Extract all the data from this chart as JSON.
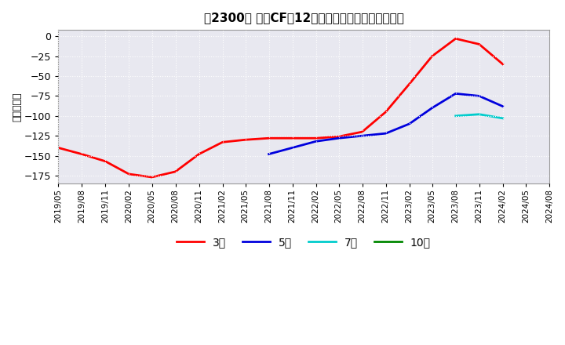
{
  "title": "【2300】 投資CFの12か月移動合計の平均値の推移",
  "ylabel": "（百万円）",
  "bg_color": "#ffffff",
  "plot_bg_color": "#e8e8f0",
  "grid_color": "#ffffff",
  "yticks": [
    0,
    -25,
    -50,
    -75,
    -100,
    -125,
    -150,
    -175
  ],
  "ylim": [
    -185,
    8
  ],
  "series": {
    "3年": {
      "color": "#ff0000",
      "data": [
        [
          "2019-05",
          -140
        ],
        [
          "2019-08",
          -148
        ],
        [
          "2019-11",
          -157
        ],
        [
          "2020-02",
          -173
        ],
        [
          "2020-05",
          -177
        ],
        [
          "2020-08",
          -170
        ],
        [
          "2020-11",
          -148
        ],
        [
          "2021-02",
          -133
        ],
        [
          "2021-05",
          -130
        ],
        [
          "2021-08",
          -128
        ],
        [
          "2021-11",
          -128
        ],
        [
          "2022-02",
          -128
        ],
        [
          "2022-05",
          -126
        ],
        [
          "2022-08",
          -120
        ],
        [
          "2022-11",
          -95
        ],
        [
          "2023-02",
          -60
        ],
        [
          "2023-05",
          -25
        ],
        [
          "2023-08",
          -3
        ],
        [
          "2023-11",
          -10
        ],
        [
          "2024-02",
          -35
        ]
      ]
    },
    "5年": {
      "color": "#0000dd",
      "data": [
        [
          "2021-08",
          -148
        ],
        [
          "2021-11",
          -140
        ],
        [
          "2022-02",
          -132
        ],
        [
          "2022-05",
          -128
        ],
        [
          "2022-08",
          -125
        ],
        [
          "2022-11",
          -122
        ],
        [
          "2023-02",
          -110
        ],
        [
          "2023-05",
          -90
        ],
        [
          "2023-08",
          -72
        ],
        [
          "2023-11",
          -75
        ],
        [
          "2024-02",
          -88
        ]
      ]
    },
    "7年": {
      "color": "#00cccc",
      "data": [
        [
          "2023-08",
          -100
        ],
        [
          "2023-11",
          -98
        ],
        [
          "2024-02",
          -103
        ]
      ]
    },
    "10年": {
      "color": "#008800",
      "data": []
    }
  },
  "legend_labels": [
    "3年",
    "5年",
    "7年",
    "10年"
  ],
  "legend_colors": [
    "#ff0000",
    "#0000dd",
    "#00cccc",
    "#008800"
  ],
  "x_start": "2019-05",
  "x_end": "2024-08"
}
